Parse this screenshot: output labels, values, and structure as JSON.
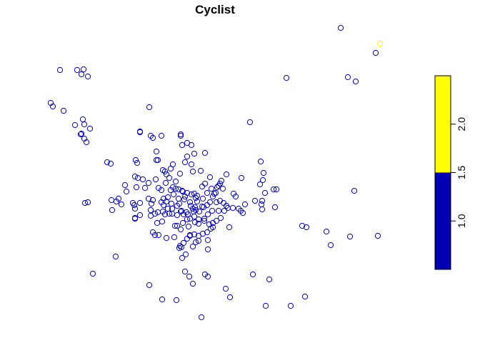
{
  "title": "Cyclist",
  "colors": {
    "background": "#ffffff",
    "point_default": "#0000CC",
    "point_high": "#FFFF00",
    "legend_low": "#0000B3",
    "legend_high": "#FFFF00",
    "legend_border": "#000000"
  },
  "legend": {
    "ticks": [
      "1.0",
      "1.5",
      "2.0"
    ],
    "range": [
      0.5,
      2.5
    ],
    "bins": [
      {
        "from": 0.5,
        "to": 1.5,
        "color": "#0000B3"
      },
      {
        "from": 1.5,
        "to": 2.5,
        "color": "#FFFF00"
      }
    ]
  },
  "points": [
    [
      477,
      39
    ],
    [
      526,
      74
    ],
    [
      401,
      109
    ],
    [
      487,
      108
    ],
    [
      498,
      114
    ],
    [
      84,
      98
    ],
    [
      108,
      98
    ],
    [
      117,
      97
    ],
    [
      114,
      104
    ],
    [
      123,
      107
    ],
    [
      71,
      144
    ],
    [
      74,
      149
    ],
    [
      89,
      155
    ],
    [
      209,
      150
    ],
    [
      116,
      167
    ],
    [
      105,
      175
    ],
    [
      118,
      174
    ],
    [
      126,
      180
    ],
    [
      114,
      187
    ],
    [
      113,
      188
    ],
    [
      118,
      194
    ],
    [
      121,
      199
    ],
    [
      196,
      184
    ],
    [
      196,
      185
    ],
    [
      214,
      193
    ],
    [
      226,
      190
    ],
    [
      253,
      188
    ],
    [
      253,
      190
    ],
    [
      262,
      200
    ],
    [
      255,
      203
    ],
    [
      268,
      203
    ],
    [
      350,
      171
    ],
    [
      219,
      212
    ],
    [
      219,
      224
    ],
    [
      221,
      224
    ],
    [
      287,
      214
    ],
    [
      272,
      215
    ],
    [
      190,
      224
    ],
    [
      192,
      228
    ],
    [
      150,
      227
    ],
    [
      155,
      229
    ],
    [
      228,
      238
    ],
    [
      231,
      240
    ],
    [
      233,
      244
    ],
    [
      237,
      249
    ],
    [
      252,
      243
    ],
    [
      268,
      230
    ],
    [
      281,
      239
    ],
    [
      294,
      248
    ],
    [
      310,
      253
    ],
    [
      308,
      257
    ],
    [
      306,
      260
    ],
    [
      304,
      262
    ],
    [
      317,
      244
    ],
    [
      338,
      249
    ],
    [
      365,
      226
    ],
    [
      369,
      242
    ],
    [
      368,
      252
    ],
    [
      364,
      258
    ],
    [
      383,
      265
    ],
    [
      387,
      265
    ],
    [
      371,
      270
    ],
    [
      367,
      281
    ],
    [
      357,
      281
    ],
    [
      343,
      286
    ],
    [
      334,
      292
    ],
    [
      340,
      298
    ],
    [
      337,
      295
    ],
    [
      385,
      290
    ],
    [
      189,
      247
    ],
    [
      193,
      249
    ],
    [
      200,
      251
    ],
    [
      208,
      256
    ],
    [
      175,
      259
    ],
    [
      177,
      268
    ],
    [
      191,
      262
    ],
    [
      203,
      263
    ],
    [
      218,
      251
    ],
    [
      222,
      263
    ],
    [
      226,
      266
    ],
    [
      246,
      254
    ],
    [
      242,
      262
    ],
    [
      246,
      264
    ],
    [
      250,
      265
    ],
    [
      255,
      267
    ],
    [
      262,
      270
    ],
    [
      268,
      272
    ],
    [
      272,
      271
    ],
    [
      276,
      274
    ],
    [
      290,
      270
    ],
    [
      296,
      264
    ],
    [
      300,
      271
    ],
    [
      298,
      275
    ],
    [
      284,
      278
    ],
    [
      276,
      282
    ],
    [
      266,
      283
    ],
    [
      259,
      275
    ],
    [
      250,
      278
    ],
    [
      243,
      272
    ],
    [
      235,
      276
    ],
    [
      229,
      278
    ],
    [
      226,
      283
    ],
    [
      233,
      282
    ],
    [
      240,
      285
    ],
    [
      248,
      288
    ],
    [
      254,
      295
    ],
    [
      261,
      297
    ],
    [
      270,
      292
    ],
    [
      274,
      294
    ],
    [
      279,
      296
    ],
    [
      285,
      290
    ],
    [
      290,
      287
    ],
    [
      294,
      283
    ],
    [
      303,
      283
    ],
    [
      308,
      281
    ],
    [
      313,
      284
    ],
    [
      317,
      288
    ],
    [
      319,
      291
    ],
    [
      326,
      291
    ],
    [
      314,
      295
    ],
    [
      306,
      295
    ],
    [
      297,
      295
    ],
    [
      291,
      300
    ],
    [
      286,
      306
    ],
    [
      278,
      307
    ],
    [
      272,
      303
    ],
    [
      266,
      306
    ],
    [
      262,
      307
    ],
    [
      257,
      300
    ],
    [
      253,
      296
    ],
    [
      248,
      301
    ],
    [
      241,
      299
    ],
    [
      237,
      299
    ],
    [
      231,
      300
    ],
    [
      228,
      296
    ],
    [
      221,
      297
    ],
    [
      217,
      299
    ],
    [
      211,
      302
    ],
    [
      220,
      312
    ],
    [
      227,
      310
    ],
    [
      245,
      316
    ],
    [
      248,
      316
    ],
    [
      253,
      321
    ],
    [
      264,
      317
    ],
    [
      273,
      311
    ],
    [
      278,
      313
    ],
    [
      286,
      309
    ],
    [
      293,
      314
    ],
    [
      298,
      312
    ],
    [
      303,
      309
    ],
    [
      309,
      305
    ],
    [
      298,
      318
    ],
    [
      295,
      320
    ],
    [
      290,
      325
    ],
    [
      284,
      327
    ],
    [
      278,
      330
    ],
    [
      272,
      328
    ],
    [
      266,
      329
    ],
    [
      262,
      334
    ],
    [
      257,
      340
    ],
    [
      254,
      346
    ],
    [
      244,
      332
    ],
    [
      233,
      333
    ],
    [
      222,
      329
    ],
    [
      214,
      325
    ],
    [
      217,
      329
    ],
    [
      156,
      280
    ],
    [
      166,
      278
    ],
    [
      163,
      282
    ],
    [
      170,
      286
    ],
    [
      188,
      287
    ],
    [
      189,
      292
    ],
    [
      186,
      284
    ],
    [
      196,
      284
    ],
    [
      123,
      283
    ],
    [
      119,
      284
    ],
    [
      157,
      294
    ],
    [
      189,
      305
    ],
    [
      189,
      306
    ],
    [
      196,
      301
    ],
    [
      211,
      294
    ],
    [
      212,
      285
    ],
    [
      229,
      287
    ],
    [
      214,
      280
    ],
    [
      208,
      278
    ],
    [
      232,
      256
    ],
    [
      239,
      266
    ],
    [
      256,
      268
    ],
    [
      274,
      277
    ],
    [
      267,
      288
    ],
    [
      283,
      289
    ],
    [
      273,
      290
    ],
    [
      271,
      296
    ],
    [
      263,
      300
    ],
    [
      256,
      312
    ],
    [
      278,
      337
    ],
    [
      274,
      339
    ],
    [
      270,
      345
    ],
    [
      266,
      330
    ],
    [
      291,
      336
    ],
    [
      291,
      349
    ],
    [
      252,
      344
    ],
    [
      260,
      356
    ],
    [
      255,
      361
    ],
    [
      251,
      347
    ],
    [
      321,
      318
    ],
    [
      367,
      293
    ],
    [
      366,
      286
    ],
    [
      423,
      316
    ],
    [
      429,
      318
    ],
    [
      457,
      324
    ],
    [
      490,
      331
    ],
    [
      529,
      330
    ],
    [
      463,
      343
    ],
    [
      496,
      267
    ],
    [
      532,
      61
    ],
    [
      162,
      359
    ],
    [
      130,
      383
    ],
    [
      209,
      399
    ],
    [
      227,
      419
    ],
    [
      247,
      420
    ],
    [
      259,
      380
    ],
    [
      265,
      387
    ],
    [
      270,
      397
    ],
    [
      287,
      384
    ],
    [
      291,
      387
    ],
    [
      316,
      404
    ],
    [
      322,
      416
    ],
    [
      354,
      384
    ],
    [
      377,
      391
    ],
    [
      372,
      428
    ],
    [
      407,
      428
    ],
    [
      427,
      415
    ],
    [
      282,
      444
    ],
    [
      211,
      190
    ],
    [
      242,
      230
    ],
    [
      239,
      236
    ],
    [
      262,
      219
    ],
    [
      259,
      227
    ],
    [
      270,
      240
    ],
    [
      283,
      261
    ],
    [
      287,
      257
    ],
    [
      302,
      270
    ],
    [
      312,
      264
    ],
    [
      327,
      271
    ],
    [
      330,
      275
    ],
    [
      258,
      279
    ],
    [
      251,
      285
    ],
    [
      241,
      292
    ],
    [
      235,
      292
    ]
  ]
}
